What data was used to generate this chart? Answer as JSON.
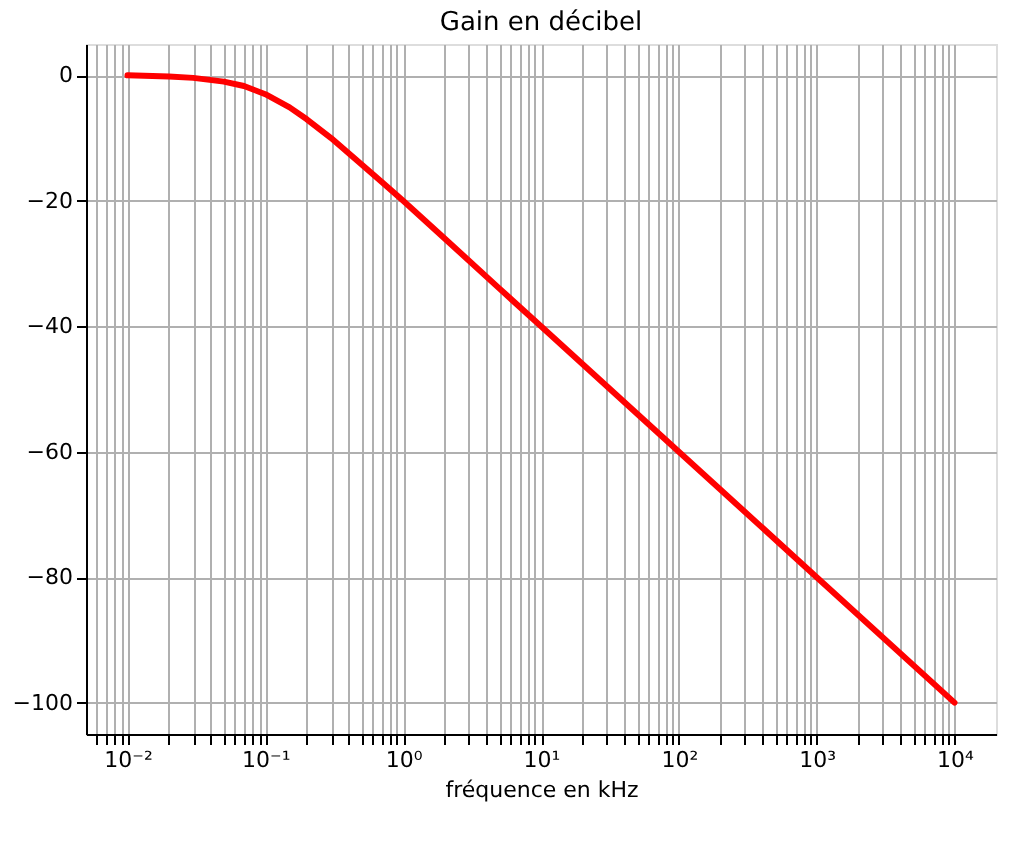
{
  "chart_data": {
    "type": "line",
    "title": "Gain en décibel",
    "xlabel": "fréquence en kHz",
    "log": "x",
    "x": [
      0.01,
      0.02,
      0.03,
      0.05,
      0.07,
      0.1,
      0.15,
      0.2,
      0.3,
      0.5,
      0.7,
      1,
      2,
      5,
      10,
      100,
      1000,
      10000
    ],
    "series": [
      {
        "color": "#ff0000",
        "values": [
          0,
          -0.2,
          -0.4,
          -1,
          -1.7,
          -3,
          -5.1,
          -7,
          -10,
          -14.2,
          -17,
          -20,
          -26,
          -34,
          -40,
          -60,
          -80,
          -100
        ]
      }
    ],
    "xlim": [
      0.005,
      20000
    ],
    "xticks": [
      {
        "value": 0.006,
        "label": null
      },
      {
        "value": 0.007,
        "label": null
      },
      {
        "value": 0.008,
        "label": null
      },
      {
        "value": 0.009,
        "label": null
      },
      {
        "value": 0.01,
        "label": "10⁻²"
      },
      {
        "value": 0.02,
        "label": null
      },
      {
        "value": 0.03,
        "label": null
      },
      {
        "value": 0.04,
        "label": null
      },
      {
        "value": 0.05,
        "label": null
      },
      {
        "value": 0.06,
        "label": null
      },
      {
        "value": 0.07,
        "label": null
      },
      {
        "value": 0.08,
        "label": null
      },
      {
        "value": 0.09,
        "label": null
      },
      {
        "value": 0.1,
        "label": "10⁻¹"
      },
      {
        "value": 0.2,
        "label": null
      },
      {
        "value": 0.3,
        "label": null
      },
      {
        "value": 0.4,
        "label": null
      },
      {
        "value": 0.5,
        "label": null
      },
      {
        "value": 0.6,
        "label": null
      },
      {
        "value": 0.7,
        "label": null
      },
      {
        "value": 0.8,
        "label": null
      },
      {
        "value": 0.9,
        "label": null
      },
      {
        "value": 1,
        "label": "10⁰"
      },
      {
        "value": 2,
        "label": null
      },
      {
        "value": 3,
        "label": null
      },
      {
        "value": 4,
        "label": null
      },
      {
        "value": 5,
        "label": null
      },
      {
        "value": 6,
        "label": null
      },
      {
        "value": 7,
        "label": null
      },
      {
        "value": 8,
        "label": null
      },
      {
        "value": 9,
        "label": null
      },
      {
        "value": 10,
        "label": "10¹"
      },
      {
        "value": 20,
        "label": null
      },
      {
        "value": 30,
        "label": null
      },
      {
        "value": 40,
        "label": null
      },
      {
        "value": 50,
        "label": null
      },
      {
        "value": 60,
        "label": null
      },
      {
        "value": 70,
        "label": null
      },
      {
        "value": 80,
        "label": null
      },
      {
        "value": 90,
        "label": null
      },
      {
        "value": 100,
        "label": "10²"
      },
      {
        "value": 200,
        "label": null
      },
      {
        "value": 300,
        "label": null
      },
      {
        "value": 400,
        "label": null
      },
      {
        "value": 500,
        "label": null
      },
      {
        "value": 600,
        "label": null
      },
      {
        "value": 700,
        "label": null
      },
      {
        "value": 800,
        "label": null
      },
      {
        "value": 900,
        "label": null
      },
      {
        "value": 1000,
        "label": "10³"
      },
      {
        "value": 2000,
        "label": null
      },
      {
        "value": 3000,
        "label": null
      },
      {
        "value": 4000,
        "label": null
      },
      {
        "value": 5000,
        "label": null
      },
      {
        "value": 6000,
        "label": null
      },
      {
        "value": 7000,
        "label": null
      },
      {
        "value": 8000,
        "label": null
      },
      {
        "value": 9000,
        "label": null
      },
      {
        "value": 10000,
        "label": "10⁴"
      }
    ],
    "ylim": [
      -105,
      5
    ],
    "yticks": [
      {
        "value": -100,
        "label": "−100"
      },
      {
        "value": -80,
        "label": "−80"
      },
      {
        "value": -60,
        "label": "−60"
      },
      {
        "value": -40,
        "label": "−40"
      },
      {
        "value": -20,
        "label": "−20"
      },
      0
    ],
    "grid": true,
    "marker": "none",
    "line_style": "solid"
  }
}
